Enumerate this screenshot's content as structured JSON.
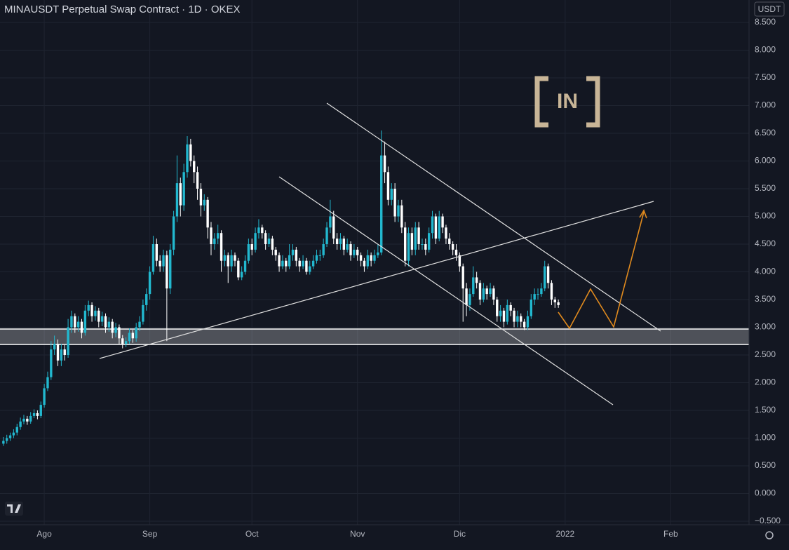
{
  "chart_data": {
    "type": "candlestick",
    "title": "MINAUSDT Perpetual Swap Contract · 1D · OKEX",
    "currency": "USDT",
    "watermark": "IN",
    "up_color": "#22b8cf",
    "down_color": "#ffffff",
    "grid": true,
    "ylim": [
      -0.563,
      8.905
    ],
    "yticks": [
      {
        "value": 8.5,
        "label": "8.500"
      },
      {
        "value": 8,
        "label": "8.000"
      },
      {
        "value": 7.5,
        "label": "7.500"
      },
      {
        "value": 7,
        "label": "7.000"
      },
      {
        "value": 6.5,
        "label": "6.500"
      },
      {
        "value": 6,
        "label": "6.000"
      },
      {
        "value": 5.5,
        "label": "5.500"
      },
      {
        "value": 5,
        "label": "5.000"
      },
      {
        "value": 4.5,
        "label": "4.500"
      },
      {
        "value": 4,
        "label": "4.000"
      },
      {
        "value": 3.5,
        "label": "3.500"
      },
      {
        "value": 3,
        "label": "3.000"
      },
      {
        "value": 2.5,
        "label": "2.500"
      },
      {
        "value": 2,
        "label": "2.000"
      },
      {
        "value": 1.5,
        "label": "1.500"
      },
      {
        "value": 1,
        "label": "1.000"
      },
      {
        "value": 0.5,
        "label": "0.500"
      },
      {
        "value": 0,
        "label": "0.000"
      },
      {
        "value": -0.5,
        "label": "−0.500"
      }
    ],
    "xlim": [
      -1,
      219
    ],
    "xticks": [
      {
        "value": 12,
        "label": "Ago"
      },
      {
        "value": 43,
        "label": "Sep"
      },
      {
        "value": 73,
        "label": "Oct"
      },
      {
        "value": 104,
        "label": "Nov"
      },
      {
        "value": 134,
        "label": "Dic"
      },
      {
        "value": 165,
        "label": "2022"
      },
      {
        "value": 196,
        "label": "Feb"
      }
    ],
    "ohlc": [
      [
        0.9,
        1.02,
        0.86,
        0.95
      ],
      [
        0.95,
        1.06,
        0.9,
        1.0
      ],
      [
        1.0,
        1.1,
        0.95,
        1.05
      ],
      [
        1.05,
        1.16,
        1.0,
        1.1
      ],
      [
        1.1,
        1.26,
        1.05,
        1.2
      ],
      [
        1.2,
        1.37,
        1.15,
        1.3
      ],
      [
        1.3,
        1.42,
        1.25,
        1.35
      ],
      [
        1.35,
        1.4,
        1.24,
        1.3
      ],
      [
        1.3,
        1.47,
        1.26,
        1.4
      ],
      [
        1.4,
        1.52,
        1.36,
        1.45
      ],
      [
        1.45,
        1.5,
        1.34,
        1.4
      ],
      [
        1.4,
        1.66,
        1.36,
        1.6
      ],
      [
        1.6,
        1.98,
        1.55,
        1.9
      ],
      [
        1.9,
        2.2,
        1.85,
        2.1
      ],
      [
        2.1,
        2.75,
        2.05,
        2.6
      ],
      [
        2.6,
        2.85,
        2.5,
        2.7
      ],
      [
        2.7,
        2.78,
        2.3,
        2.4
      ],
      [
        2.4,
        2.7,
        2.3,
        2.6
      ],
      [
        2.6,
        2.68,
        2.4,
        2.5
      ],
      [
        2.5,
        3.15,
        2.45,
        3.0
      ],
      [
        3.0,
        3.3,
        2.9,
        3.2
      ],
      [
        3.2,
        3.25,
        2.9,
        3.0
      ],
      [
        3.0,
        3.2,
        2.92,
        3.1
      ],
      [
        3.1,
        3.15,
        2.8,
        2.9
      ],
      [
        2.9,
        3.4,
        2.85,
        3.3
      ],
      [
        3.3,
        3.48,
        3.2,
        3.4
      ],
      [
        3.4,
        3.45,
        3.1,
        3.2
      ],
      [
        3.2,
        3.38,
        3.12,
        3.3
      ],
      [
        3.3,
        3.35,
        3.0,
        3.1
      ],
      [
        3.1,
        3.28,
        3.02,
        3.2
      ],
      [
        3.2,
        3.25,
        2.9,
        3.0
      ],
      [
        3.0,
        3.18,
        2.92,
        3.1
      ],
      [
        3.1,
        3.15,
        2.8,
        2.9
      ],
      [
        2.9,
        3.08,
        2.82,
        3.0
      ],
      [
        3.0,
        3.05,
        2.7,
        2.8
      ],
      [
        2.8,
        2.86,
        2.62,
        2.7
      ],
      [
        2.7,
        2.82,
        2.64,
        2.75
      ],
      [
        2.75,
        2.98,
        2.7,
        2.9
      ],
      [
        2.9,
        2.95,
        2.72,
        2.8
      ],
      [
        2.8,
        3.08,
        2.74,
        3.0
      ],
      [
        3.0,
        3.2,
        2.93,
        3.1
      ],
      [
        3.1,
        3.5,
        3.05,
        3.4
      ],
      [
        3.4,
        3.7,
        3.3,
        3.6
      ],
      [
        3.6,
        4.1,
        3.5,
        4.0
      ],
      [
        4.0,
        4.65,
        3.95,
        4.5
      ],
      [
        4.5,
        4.6,
        4.1,
        4.2
      ],
      [
        4.2,
        4.3,
        4.0,
        4.1
      ],
      [
        4.1,
        4.4,
        4.0,
        4.3
      ],
      [
        4.3,
        4.38,
        2.75,
        3.7
      ],
      [
        3.7,
        4.5,
        3.6,
        4.4
      ],
      [
        4.4,
        5.1,
        4.3,
        5.0
      ],
      [
        5.0,
        6.1,
        4.9,
        5.6
      ],
      [
        5.6,
        5.7,
        5.0,
        5.2
      ],
      [
        5.2,
        5.95,
        5.1,
        5.8
      ],
      [
        5.8,
        6.45,
        5.7,
        6.3
      ],
      [
        6.3,
        6.4,
        5.9,
        6.0
      ],
      [
        6.0,
        6.1,
        5.6,
        5.8
      ],
      [
        5.8,
        5.9,
        5.3,
        5.5
      ],
      [
        5.5,
        5.6,
        5.0,
        5.2
      ],
      [
        5.2,
        5.4,
        5.1,
        5.3
      ],
      [
        5.3,
        5.35,
        4.6,
        4.8
      ],
      [
        4.8,
        4.9,
        4.3,
        4.5
      ],
      [
        4.5,
        4.7,
        4.4,
        4.6
      ],
      [
        4.6,
        4.85,
        4.5,
        4.7
      ],
      [
        4.7,
        4.75,
        4.0,
        4.2
      ],
      [
        4.2,
        4.4,
        4.1,
        4.3
      ],
      [
        4.3,
        4.35,
        3.8,
        4.1
      ],
      [
        4.1,
        4.4,
        4.0,
        4.3
      ],
      [
        4.3,
        4.35,
        4.1,
        4.2
      ],
      [
        4.2,
        4.25,
        3.85,
        3.9
      ],
      [
        3.9,
        4.1,
        3.85,
        4.0
      ],
      [
        4.0,
        4.3,
        3.95,
        4.2
      ],
      [
        4.2,
        4.6,
        4.15,
        4.5
      ],
      [
        4.5,
        4.6,
        4.3,
        4.4
      ],
      [
        4.4,
        4.8,
        4.35,
        4.7
      ],
      [
        4.7,
        4.95,
        4.6,
        4.8
      ],
      [
        4.8,
        4.85,
        4.6,
        4.7
      ],
      [
        4.7,
        4.75,
        4.4,
        4.5
      ],
      [
        4.5,
        4.7,
        4.45,
        4.6
      ],
      [
        4.6,
        4.65,
        4.3,
        4.4
      ],
      [
        4.4,
        4.45,
        4.2,
        4.3
      ],
      [
        4.3,
        4.35,
        4.0,
        4.1
      ],
      [
        4.1,
        4.3,
        4.05,
        4.2
      ],
      [
        4.2,
        4.25,
        4.0,
        4.1
      ],
      [
        4.1,
        4.5,
        4.05,
        4.3
      ],
      [
        4.3,
        4.5,
        4.2,
        4.4
      ],
      [
        4.4,
        4.45,
        4.1,
        4.2
      ],
      [
        4.2,
        4.25,
        4.0,
        4.1
      ],
      [
        4.1,
        4.3,
        4.05,
        4.2
      ],
      [
        4.2,
        4.25,
        3.95,
        4.0
      ],
      [
        4.0,
        4.2,
        3.95,
        4.1
      ],
      [
        4.1,
        4.3,
        4.05,
        4.2
      ],
      [
        4.2,
        4.4,
        4.15,
        4.3
      ],
      [
        4.3,
        4.4,
        4.2,
        4.3
      ],
      [
        4.3,
        4.6,
        4.25,
        4.5
      ],
      [
        4.5,
        4.9,
        4.45,
        4.8
      ],
      [
        4.8,
        5.3,
        4.7,
        5.0
      ],
      [
        5.0,
        5.1,
        4.5,
        4.6
      ],
      [
        4.6,
        4.7,
        4.4,
        4.5
      ],
      [
        4.5,
        4.7,
        4.4,
        4.6
      ],
      [
        4.6,
        4.65,
        4.3,
        4.4
      ],
      [
        4.4,
        4.6,
        4.35,
        4.5
      ],
      [
        4.5,
        4.55,
        4.2,
        4.3
      ],
      [
        4.3,
        4.5,
        4.25,
        4.4
      ],
      [
        4.4,
        4.45,
        4.2,
        4.3
      ],
      [
        4.3,
        4.35,
        4.1,
        4.2
      ],
      [
        4.2,
        4.25,
        4.0,
        4.1
      ],
      [
        4.1,
        4.4,
        4.05,
        4.3
      ],
      [
        4.3,
        4.35,
        4.1,
        4.2
      ],
      [
        4.2,
        4.4,
        4.15,
        4.3
      ],
      [
        4.3,
        4.5,
        4.25,
        4.35
      ],
      [
        4.35,
        6.55,
        4.3,
        6.1
      ],
      [
        6.1,
        6.35,
        5.6,
        5.8
      ],
      [
        5.8,
        5.9,
        5.2,
        5.3
      ],
      [
        5.3,
        5.6,
        5.2,
        5.5
      ],
      [
        5.5,
        5.6,
        4.9,
        5.0
      ],
      [
        5.0,
        5.3,
        4.9,
        5.2
      ],
      [
        5.2,
        5.3,
        4.7,
        4.8
      ],
      [
        4.8,
        4.9,
        4.1,
        4.2
      ],
      [
        4.2,
        4.8,
        4.1,
        4.7
      ],
      [
        4.7,
        4.8,
        4.3,
        4.4
      ],
      [
        4.4,
        4.9,
        4.3,
        4.8
      ],
      [
        4.8,
        4.9,
        4.4,
        4.5
      ],
      [
        4.5,
        4.6,
        4.4,
        4.5
      ],
      [
        4.5,
        4.6,
        4.3,
        4.4
      ],
      [
        4.4,
        4.8,
        4.35,
        4.7
      ],
      [
        4.7,
        5.1,
        4.6,
        5.0
      ],
      [
        5.0,
        5.05,
        4.5,
        4.6
      ],
      [
        4.6,
        5.1,
        4.55,
        5.0
      ],
      [
        5.0,
        5.05,
        4.7,
        4.8
      ],
      [
        4.8,
        4.85,
        4.5,
        4.6
      ],
      [
        4.6,
        4.7,
        4.4,
        4.5
      ],
      [
        4.5,
        4.55,
        4.3,
        4.4
      ],
      [
        4.4,
        4.5,
        4.2,
        4.3
      ],
      [
        4.3,
        4.35,
        4.0,
        4.1
      ],
      [
        4.1,
        4.15,
        3.1,
        3.7
      ],
      [
        3.7,
        3.8,
        3.2,
        3.4
      ],
      [
        3.4,
        3.7,
        3.3,
        3.6
      ],
      [
        3.6,
        4.1,
        3.55,
        3.9
      ],
      [
        3.9,
        4.0,
        3.7,
        3.8
      ],
      [
        3.8,
        3.85,
        3.4,
        3.5
      ],
      [
        3.5,
        3.8,
        3.45,
        3.7
      ],
      [
        3.7,
        3.75,
        3.5,
        3.6
      ],
      [
        3.6,
        3.8,
        3.55,
        3.7
      ],
      [
        3.7,
        3.75,
        3.4,
        3.5
      ],
      [
        3.5,
        3.55,
        3.1,
        3.2
      ],
      [
        3.2,
        3.4,
        3.1,
        3.3
      ],
      [
        3.3,
        3.35,
        3.0,
        3.1
      ],
      [
        3.1,
        3.5,
        3.05,
        3.4
      ],
      [
        3.4,
        3.45,
        3.2,
        3.3
      ],
      [
        3.3,
        3.35,
        3.0,
        3.1
      ],
      [
        3.1,
        3.3,
        3.0,
        3.2
      ],
      [
        3.2,
        3.25,
        3.0,
        3.1
      ],
      [
        3.1,
        3.15,
        2.95,
        3.0
      ],
      [
        3.0,
        3.3,
        2.95,
        3.2
      ],
      [
        3.2,
        3.6,
        3.15,
        3.5
      ],
      [
        3.5,
        3.7,
        3.4,
        3.6
      ],
      [
        3.6,
        3.7,
        3.5,
        3.6
      ],
      [
        3.6,
        3.8,
        3.55,
        3.7
      ],
      [
        3.7,
        4.2,
        3.65,
        4.1
      ],
      [
        4.1,
        4.15,
        3.7,
        3.8
      ],
      [
        3.8,
        3.85,
        3.4,
        3.5
      ],
      [
        3.5,
        3.55,
        3.35,
        3.45
      ],
      [
        3.45,
        3.5,
        3.35,
        3.4
      ]
    ]
  }
}
